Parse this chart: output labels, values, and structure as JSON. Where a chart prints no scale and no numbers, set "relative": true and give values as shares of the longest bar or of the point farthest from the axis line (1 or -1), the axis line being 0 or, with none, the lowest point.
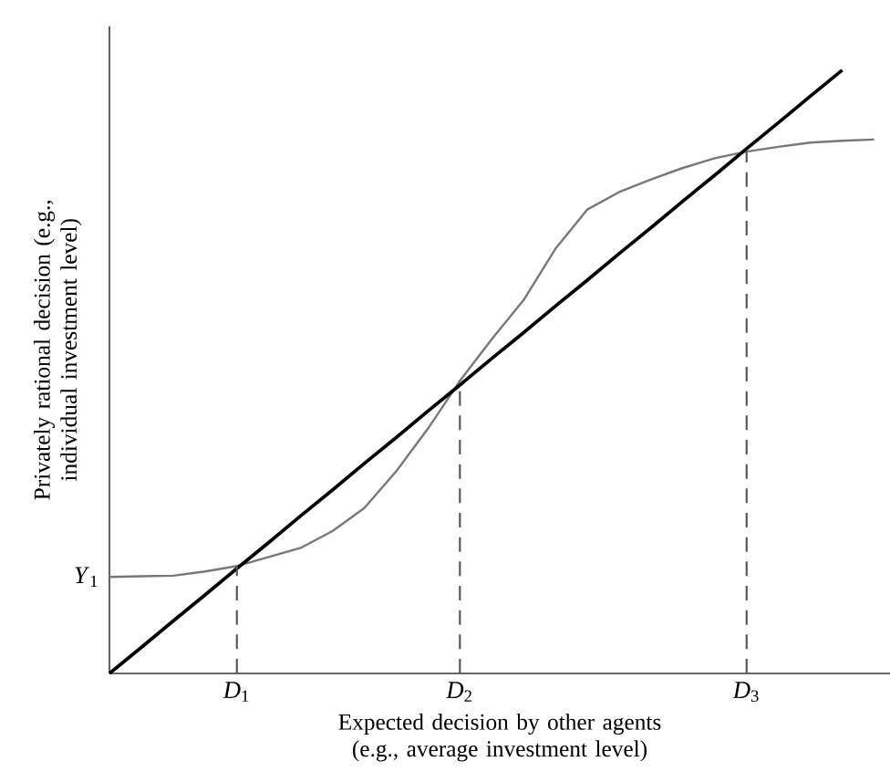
{
  "chart_data": {
    "type": "line",
    "relative": true,
    "xlabel": "Expected decision by other agents (e.g., average investment level)",
    "ylabel": "Privately rational decision (e.g., individual investment level)",
    "categories": [
      null,
      null,
      null,
      null,
      "*D*$_{1}$",
      null,
      null,
      null,
      null,
      null,
      null,
      "*D*$_{2}$",
      null,
      null,
      null,
      null,
      null,
      null,
      null,
      null,
      "*D*$_{3}$",
      null,
      null,
      null,
      null
    ],
    "annotations": [
      "*Y*$_{1}$"
    ],
    "ref_lines": [
      {
        "axis": "x",
        "value": "*D*$_{1}$",
        "color": "#555555",
        "line_style": "dashed"
      },
      {
        "axis": "x",
        "value": "*D*$_{2}$",
        "color": "#555555",
        "line_style": "dashed"
      },
      {
        "axis": "x",
        "value": "*D*$_{3}$",
        "color": "#555555",
        "line_style": "dashed"
      }
    ],
    "series": [
      {
        "color": "#777777",
        "values": [
          0.16,
          0.161,
          0.162,
          0.169,
          0.178,
          0.193,
          0.208,
          0.236,
          0.274,
          0.335,
          0.406,
          0.485,
          0.554,
          0.619,
          0.704,
          0.769,
          0.798,
          0.819,
          0.838,
          0.854,
          0.865,
          0.873,
          0.88,
          0.883,
          0.885
        ]
      },
      {
        "color": "#000000",
        "values": [
          0,
          0.043,
          0.087,
          0.13,
          0.174,
          0.217,
          0.261,
          0.304,
          0.348,
          0.391,
          0.435,
          0.478,
          0.522,
          0.565,
          0.609,
          0.652,
          0.696,
          0.739,
          0.783,
          0.826,
          0.87,
          0.913,
          0.957,
          1,
          null
        ]
      }
    ]
  }
}
